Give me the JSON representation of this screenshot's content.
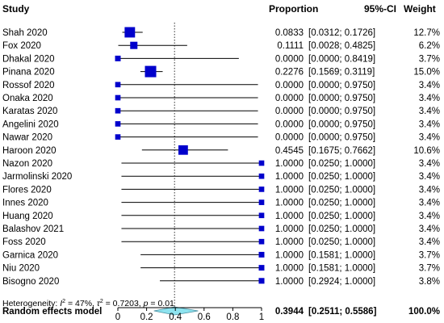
{
  "chart_data": {
    "type": "forest",
    "headers": {
      "study": "Study",
      "proportion": "Proportion",
      "ci": "95%-CI",
      "weight": "Weight"
    },
    "studies": [
      {
        "name": "Shah 2020",
        "est": 0.0833,
        "lo": 0.0312,
        "hi": 0.1726,
        "prop": "0.0833",
        "ci": "[0.0312; 0.1726]",
        "weight": "12.7%",
        "w": 12.7
      },
      {
        "name": "Fox 2020",
        "est": 0.1111,
        "lo": 0.0028,
        "hi": 0.4825,
        "prop": "0.1111",
        "ci": "[0.0028; 0.4825]",
        "weight": "6.2%",
        "w": 6.2
      },
      {
        "name": "Dhakal 2020",
        "est": 0.0,
        "lo": 0.0,
        "hi": 0.8419,
        "prop": "0.0000",
        "ci": "[0.0000; 0.8419]",
        "weight": "3.7%",
        "w": 3.7
      },
      {
        "name": "Pinana 2020",
        "est": 0.2276,
        "lo": 0.1569,
        "hi": 0.3119,
        "prop": "0.2276",
        "ci": "[0.1569; 0.3119]",
        "weight": "15.0%",
        "w": 15.0
      },
      {
        "name": "Rossof 2020",
        "est": 0.0,
        "lo": 0.0,
        "hi": 0.975,
        "prop": "0.0000",
        "ci": "[0.0000; 0.9750]",
        "weight": "3.4%",
        "w": 3.4
      },
      {
        "name": "Onaka 2020",
        "est": 0.0,
        "lo": 0.0,
        "hi": 0.975,
        "prop": "0.0000",
        "ci": "[0.0000; 0.9750]",
        "weight": "3.4%",
        "w": 3.4
      },
      {
        "name": "Karatas 2020",
        "est": 0.0,
        "lo": 0.0,
        "hi": 0.975,
        "prop": "0.0000",
        "ci": "[0.0000; 0.9750]",
        "weight": "3.4%",
        "w": 3.4
      },
      {
        "name": "Angelini 2020",
        "est": 0.0,
        "lo": 0.0,
        "hi": 0.975,
        "prop": "0.0000",
        "ci": "[0.0000; 0.9750]",
        "weight": "3.4%",
        "w": 3.4
      },
      {
        "name": "Nawar 2020",
        "est": 0.0,
        "lo": 0.0,
        "hi": 0.975,
        "prop": "0.0000",
        "ci": "[0.0000; 0.9750]",
        "weight": "3.4%",
        "w": 3.4
      },
      {
        "name": "Haroon 2020",
        "est": 0.4545,
        "lo": 0.1675,
        "hi": 0.7662,
        "prop": "0.4545",
        "ci": "[0.1675; 0.7662]",
        "weight": "10.6%",
        "w": 10.6
      },
      {
        "name": "Nazon 2020",
        "est": 1.0,
        "lo": 0.025,
        "hi": 1.0,
        "prop": "1.0000",
        "ci": "[0.0250; 1.0000]",
        "weight": "3.4%",
        "w": 3.4
      },
      {
        "name": "Jarmolinski 2020",
        "est": 1.0,
        "lo": 0.025,
        "hi": 1.0,
        "prop": "1.0000",
        "ci": "[0.0250; 1.0000]",
        "weight": "3.4%",
        "w": 3.4
      },
      {
        "name": "Flores 2020",
        "est": 1.0,
        "lo": 0.025,
        "hi": 1.0,
        "prop": "1.0000",
        "ci": "[0.0250; 1.0000]",
        "weight": "3.4%",
        "w": 3.4
      },
      {
        "name": "Innes 2020",
        "est": 1.0,
        "lo": 0.025,
        "hi": 1.0,
        "prop": "1.0000",
        "ci": "[0.0250; 1.0000]",
        "weight": "3.4%",
        "w": 3.4
      },
      {
        "name": "Huang 2020",
        "est": 1.0,
        "lo": 0.025,
        "hi": 1.0,
        "prop": "1.0000",
        "ci": "[0.0250; 1.0000]",
        "weight": "3.4%",
        "w": 3.4
      },
      {
        "name": "Balashov 2021",
        "est": 1.0,
        "lo": 0.025,
        "hi": 1.0,
        "prop": "1.0000",
        "ci": "[0.0250; 1.0000]",
        "weight": "3.4%",
        "w": 3.4
      },
      {
        "name": "Foss 2020",
        "est": 1.0,
        "lo": 0.025,
        "hi": 1.0,
        "prop": "1.0000",
        "ci": "[0.0250; 1.0000]",
        "weight": "3.4%",
        "w": 3.4
      },
      {
        "name": "Garnica 2020",
        "est": 1.0,
        "lo": 0.1581,
        "hi": 1.0,
        "prop": "1.0000",
        "ci": "[0.1581; 1.0000]",
        "weight": "3.7%",
        "w": 3.7
      },
      {
        "name": "Niu 2020",
        "est": 1.0,
        "lo": 0.1581,
        "hi": 1.0,
        "prop": "1.0000",
        "ci": "[0.1581; 1.0000]",
        "weight": "3.7%",
        "w": 3.7
      },
      {
        "name": "Bisogno 2020",
        "est": 1.0,
        "lo": 0.2924,
        "hi": 1.0,
        "prop": "1.0000",
        "ci": "[0.2924; 1.0000]",
        "weight": "3.8%",
        "w": 3.8
      }
    ],
    "summary": {
      "name": "Random effects model",
      "est": 0.3944,
      "lo": 0.2511,
      "hi": 0.5586,
      "prop": "0.3944",
      "ci": "[0.2511; 0.5586]",
      "weight": "100.0%"
    },
    "heterogeneity": {
      "prefix": "Heterogeneity: ",
      "i2_symbol": "I",
      "i2_value": " = 47%, ",
      "tau2_symbol": "τ",
      "tau2_value": " = 0.7203, ",
      "p_symbol": "p",
      "p_value": " = 0.01"
    },
    "xaxis": {
      "ticks": [
        0,
        0.2,
        0.4,
        0.6,
        0.8,
        1
      ],
      "tick_labels": [
        "0",
        "0.2",
        "0.4",
        "0.6",
        "0.8",
        "1"
      ],
      "range": [
        0,
        1
      ]
    },
    "reference_line": 0.3944,
    "colors": {
      "square": "#0000cc",
      "diamond": "#8ee3ef",
      "diamond_stroke": "#4a8fa0",
      "line": "#000000",
      "reference": "#333333"
    }
  }
}
